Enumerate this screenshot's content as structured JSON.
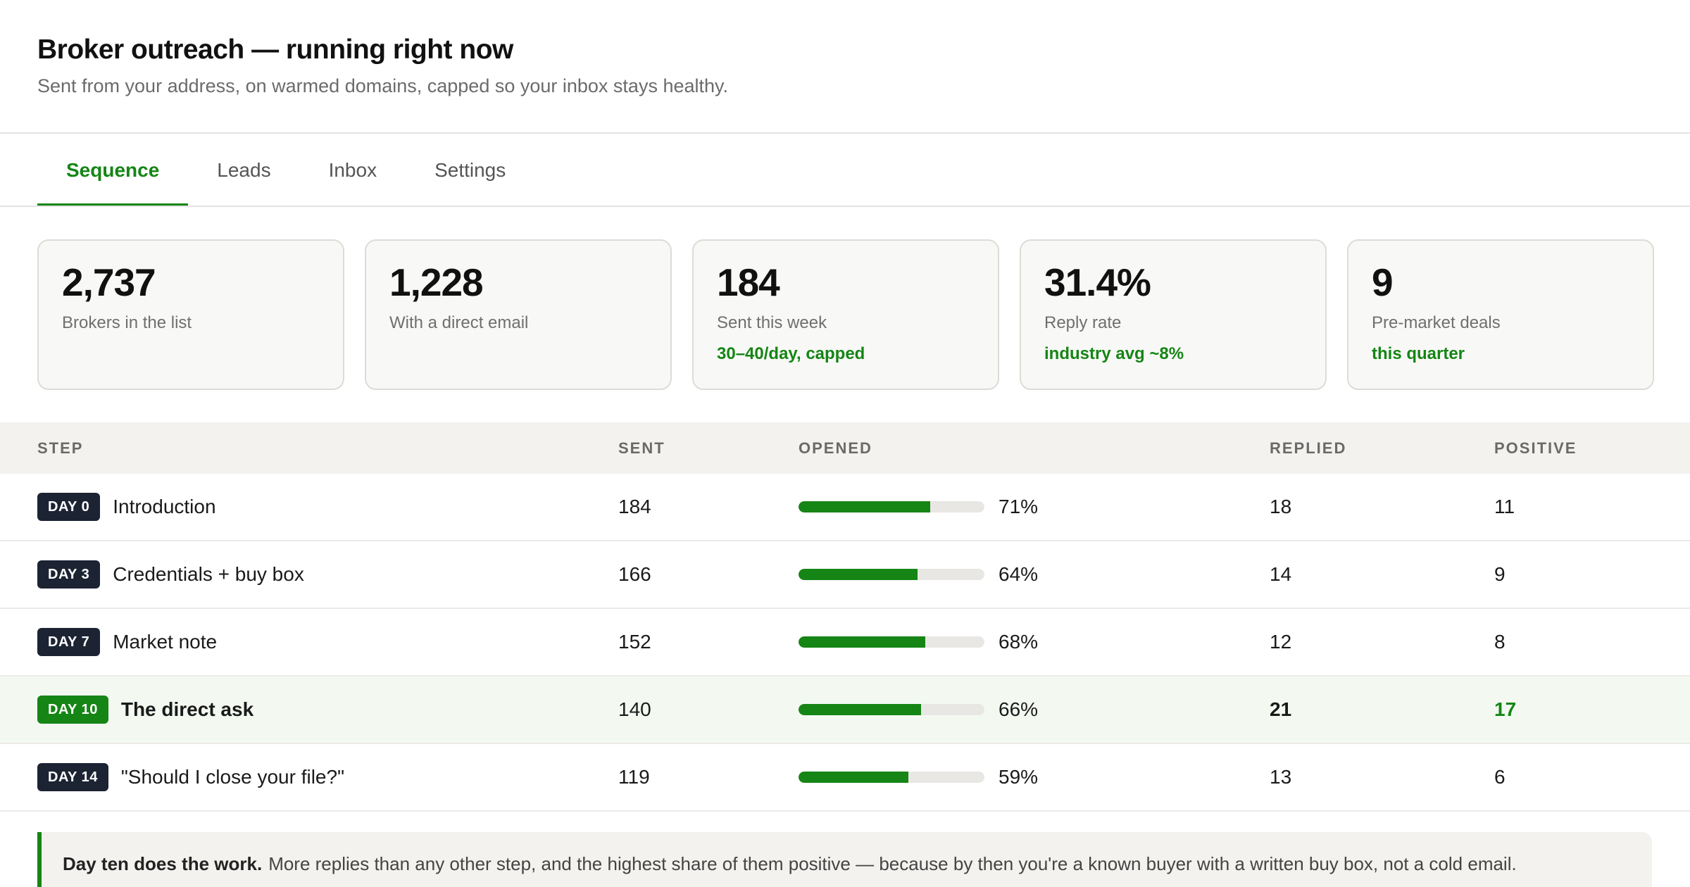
{
  "header": {
    "title": "Broker outreach — running right now",
    "subtitle": "Sent from your address, on warmed domains, capped so your inbox stays healthy."
  },
  "tabs": [
    {
      "label": "Sequence",
      "active": true
    },
    {
      "label": "Leads",
      "active": false
    },
    {
      "label": "Inbox",
      "active": false
    },
    {
      "label": "Settings",
      "active": false
    }
  ],
  "stats": [
    {
      "value": "2,737",
      "label": "Brokers in the list",
      "note": ""
    },
    {
      "value": "1,228",
      "label": "With a direct email",
      "note": ""
    },
    {
      "value": "184",
      "label": "Sent this week",
      "note": "30–40/day, capped"
    },
    {
      "value": "31.4%",
      "label": "Reply rate",
      "note": "industry avg ~8%"
    },
    {
      "value": "9",
      "label": "Pre-market deals",
      "note": "this quarter"
    }
  ],
  "table": {
    "columns": {
      "step": "STEP",
      "sent": "SENT",
      "opened": "OPENED",
      "replied": "REPLIED",
      "positive": "POSITIVE"
    },
    "rows": [
      {
        "day": "DAY 0",
        "name": "Introduction",
        "sent": "184",
        "opened_pct": "71%",
        "opened": 0.71,
        "replied": "18",
        "positive": "11",
        "highlight": false
      },
      {
        "day": "DAY 3",
        "name": "Credentials + buy box",
        "sent": "166",
        "opened_pct": "64%",
        "opened": 0.64,
        "replied": "14",
        "positive": "9",
        "highlight": false
      },
      {
        "day": "DAY 7",
        "name": "Market note",
        "sent": "152",
        "opened_pct": "68%",
        "opened": 0.68,
        "replied": "12",
        "positive": "8",
        "highlight": false
      },
      {
        "day": "DAY 10",
        "name": "The direct ask",
        "sent": "140",
        "opened_pct": "66%",
        "opened": 0.66,
        "replied": "21",
        "positive": "17",
        "highlight": true
      },
      {
        "day": "DAY 14",
        "name": "\"Should I close your file?\"",
        "sent": "119",
        "opened_pct": "59%",
        "opened": 0.59,
        "replied": "13",
        "positive": "6",
        "highlight": false
      }
    ]
  },
  "callout": {
    "strong": "Day ten does the work.",
    "text": "More replies than any other step, and the highest share of them positive — because by then you're a known buyer with a written buy box, not a cold email."
  },
  "colors": {
    "accent": "#158515",
    "badge": "#1c2333"
  }
}
